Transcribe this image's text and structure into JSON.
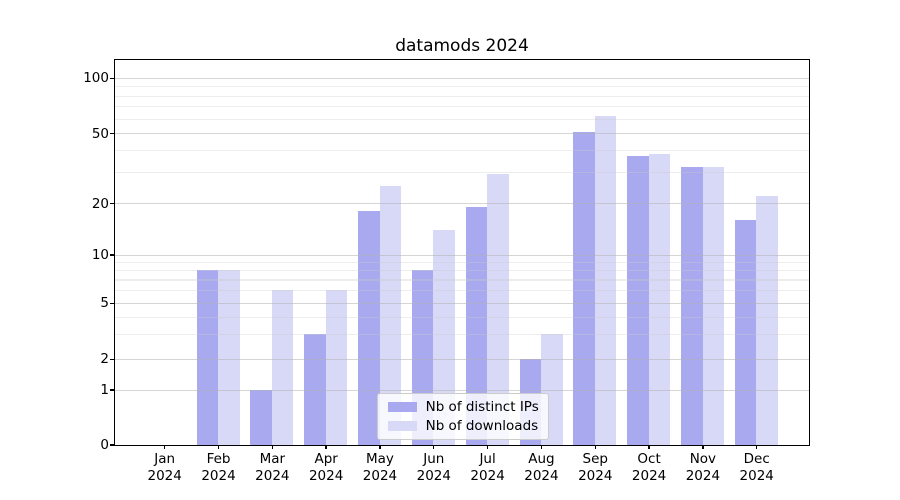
{
  "title": "datamods 2024",
  "legend": {
    "items": [
      {
        "label": "Nb of distinct IPs",
        "color": "#a9a9ef"
      },
      {
        "label": "Nb of downloads",
        "color": "#d8d8f7"
      }
    ]
  },
  "chart_data": {
    "type": "bar",
    "title": "datamods 2024",
    "categories": [
      "Jan 2024",
      "Feb 2024",
      "Mar 2024",
      "Apr 2024",
      "May 2024",
      "Jun 2024",
      "Jul 2024",
      "Aug 2024",
      "Sep 2024",
      "Oct 2024",
      "Nov 2024",
      "Dec 2024"
    ],
    "series": [
      {
        "name": "Nb of distinct IPs",
        "color": "#a9a9ef",
        "values": [
          0,
          8,
          1,
          3,
          18,
          8,
          19,
          2,
          51,
          37,
          32,
          16
        ]
      },
      {
        "name": "Nb of downloads",
        "color": "#d8d8f7",
        "values": [
          0,
          8,
          6,
          6,
          25,
          14,
          29,
          3,
          62,
          38,
          32,
          22
        ]
      }
    ],
    "xlabel": "",
    "ylabel": "",
    "yscale": "asinh (log-like above 1, linear 0 to 1)",
    "y_ticks": [
      0,
      1,
      2,
      5,
      10,
      20,
      50,
      100
    ],
    "y_minor_gridlines": [
      3,
      4,
      6,
      7,
      8,
      9,
      30,
      40,
      60,
      70,
      80,
      90
    ],
    "ylim": [
      0,
      127
    ],
    "grid": "horizontal major and minor gridlines drawn over bars",
    "legend_position": "inside plot, lower center"
  }
}
